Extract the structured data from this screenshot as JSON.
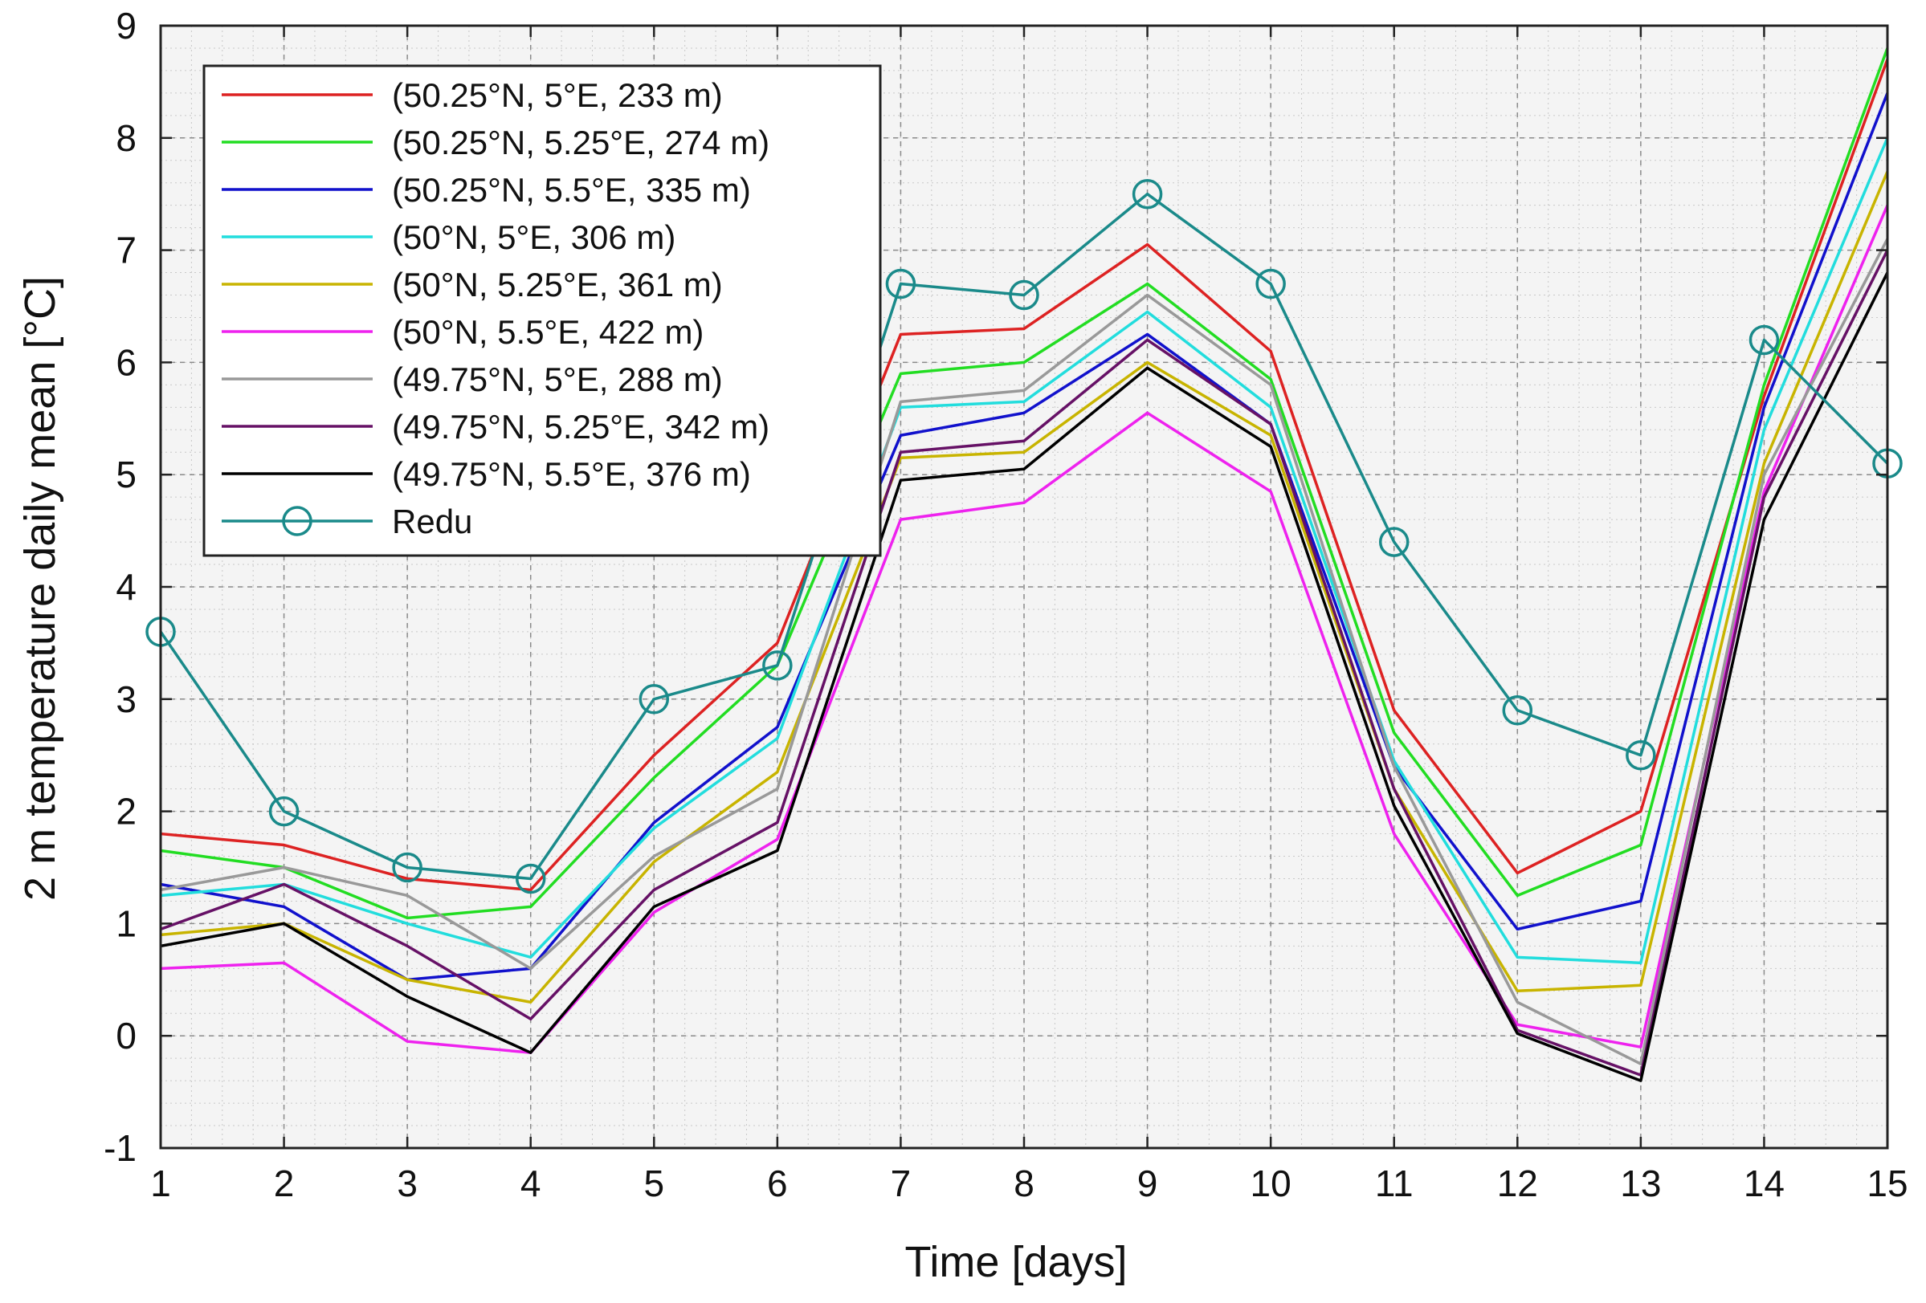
{
  "chart_data": {
    "type": "line",
    "title": "",
    "xlabel": "Time [days]",
    "ylabel": "2 m temperature daily mean [°C]",
    "xlim": [
      1,
      15
    ],
    "ylim": [
      -1,
      9
    ],
    "x_ticks": [
      "1",
      "2",
      "3",
      "4",
      "5",
      "6",
      "7",
      "8",
      "9",
      "10",
      "11",
      "12",
      "13",
      "14",
      "15"
    ],
    "y_ticks": [
      "-1",
      "0",
      "1",
      "2",
      "3",
      "4",
      "5",
      "6",
      "7",
      "8",
      "9"
    ],
    "grid": true,
    "legend_position": "top-left",
    "x": [
      1,
      2,
      3,
      4,
      5,
      6,
      7,
      8,
      9,
      10,
      11,
      12,
      13,
      14,
      15
    ],
    "series": [
      {
        "name": "(50.25°N, 5°E, 233 m)",
        "color": "#dd2222",
        "marker": "none",
        "values": [
          1.8,
          1.7,
          1.4,
          1.3,
          2.5,
          3.5,
          6.25,
          6.3,
          7.05,
          6.1,
          2.9,
          1.45,
          2.0,
          5.7,
          8.7
        ]
      },
      {
        "name": "(50.25°N, 5.25°E, 274 m)",
        "color": "#22dd22",
        "marker": "none",
        "values": [
          1.65,
          1.5,
          1.05,
          1.15,
          2.3,
          3.3,
          5.9,
          6.0,
          6.7,
          5.85,
          2.7,
          1.25,
          1.7,
          5.8,
          8.8
        ]
      },
      {
        "name": "(50.25°N, 5.5°E, 335 m)",
        "color": "#1111cc",
        "marker": "none",
        "values": [
          1.35,
          1.15,
          0.5,
          0.6,
          1.9,
          2.75,
          5.35,
          5.55,
          6.25,
          5.45,
          2.4,
          0.95,
          1.2,
          5.6,
          8.4
        ]
      },
      {
        "name": "(50°N, 5°E, 306 m)",
        "color": "#22dddd",
        "marker": "none",
        "values": [
          1.25,
          1.35,
          1.0,
          0.7,
          1.85,
          2.65,
          5.6,
          5.65,
          6.45,
          5.6,
          2.45,
          0.7,
          0.65,
          5.4,
          8.0
        ]
      },
      {
        "name": "(50°N, 5.25°E, 361 m)",
        "color": "#c8b400",
        "marker": "none",
        "values": [
          0.9,
          1.0,
          0.5,
          0.3,
          1.55,
          2.35,
          5.15,
          5.2,
          6.0,
          5.35,
          2.2,
          0.4,
          0.45,
          5.1,
          7.7
        ]
      },
      {
        "name": "(50°N, 5.5°E, 422 m)",
        "color": "#ee22ee",
        "marker": "none",
        "values": [
          0.6,
          0.65,
          -0.05,
          -0.15,
          1.1,
          1.75,
          4.6,
          4.75,
          5.55,
          4.85,
          1.8,
          0.1,
          -0.1,
          4.85,
          7.4
        ]
      },
      {
        "name": "(49.75°N, 5°E, 288 m)",
        "color": "#999999",
        "marker": "none",
        "values": [
          1.3,
          1.5,
          1.25,
          0.6,
          1.6,
          2.2,
          5.65,
          5.75,
          6.6,
          5.8,
          2.4,
          0.3,
          -0.25,
          5.0,
          7.1
        ]
      },
      {
        "name": "(49.75°N, 5.25°E, 342 m)",
        "color": "#661166",
        "marker": "none",
        "values": [
          0.95,
          1.35,
          0.8,
          0.15,
          1.3,
          1.9,
          5.2,
          5.3,
          6.2,
          5.45,
          2.2,
          0.05,
          -0.35,
          4.8,
          7.0
        ]
      },
      {
        "name": "(49.75°N, 5.5°E, 376 m)",
        "color": "#000000",
        "marker": "none",
        "values": [
          0.8,
          1.0,
          0.35,
          -0.15,
          1.15,
          1.65,
          4.95,
          5.05,
          5.95,
          5.25,
          2.05,
          0.02,
          -0.4,
          4.6,
          6.8
        ]
      },
      {
        "name": "Redu",
        "color": "#1a8a8a",
        "marker": "circle",
        "values": [
          3.6,
          2.0,
          1.5,
          1.4,
          3.0,
          3.3,
          6.7,
          6.6,
          7.5,
          6.7,
          4.4,
          2.9,
          2.5,
          6.2,
          5.1
        ]
      }
    ]
  }
}
